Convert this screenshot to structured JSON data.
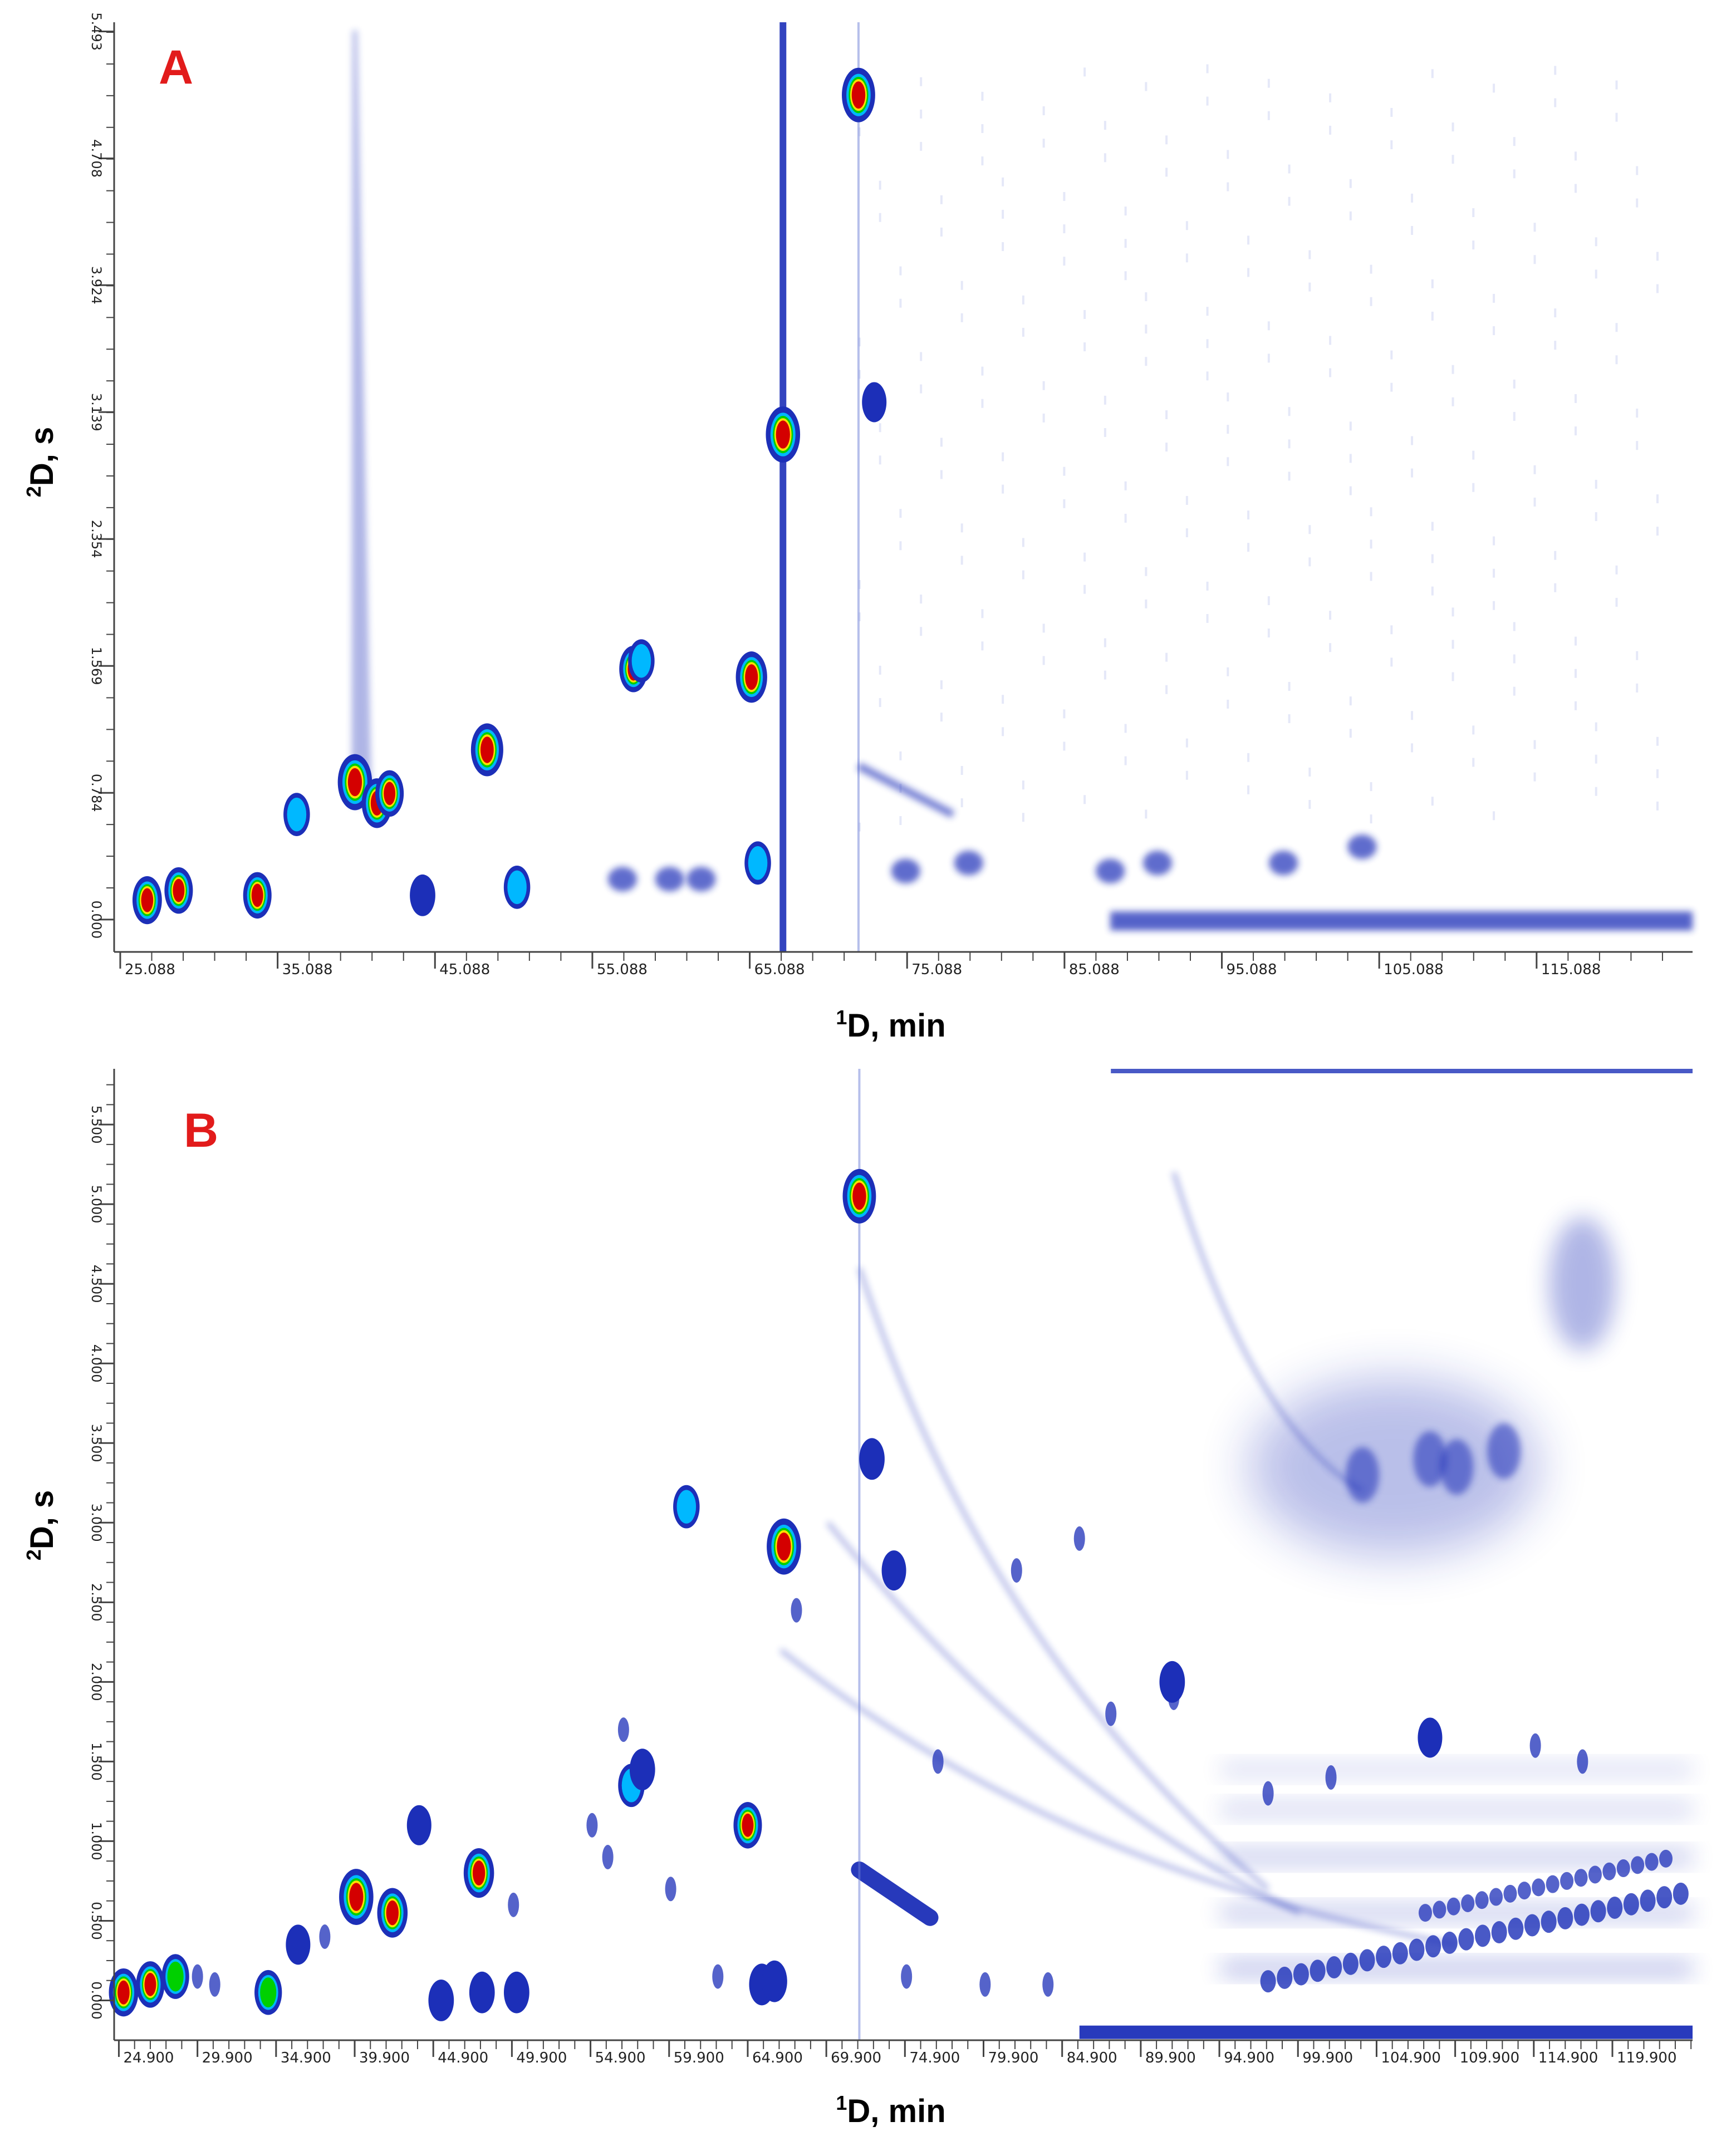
{
  "chart_data": [
    {
      "type": "heatmap",
      "panel_label": "A",
      "xlabel": "1D, min",
      "xlabel_sup": "1",
      "xlabel_rest": "D, min",
      "ylabel": "2D, s",
      "ylabel_sup": "2",
      "ylabel_rest": "D, s",
      "x_ticks": [
        "25.088",
        "35.088",
        "45.088",
        "55.088",
        "65.088",
        "75.088",
        "85.088",
        "95.088",
        "105.088",
        "115.088"
      ],
      "x_tick_values": [
        25.088,
        35.088,
        45.088,
        55.088,
        65.088,
        75.088,
        85.088,
        95.088,
        105.088,
        115.088
      ],
      "xlim": [
        24.7,
        125.0
      ],
      "y_ticks": [
        "0.000",
        "0.784",
        "1.569",
        "2.354",
        "3.139",
        "3.924",
        "4.708",
        "5.493"
      ],
      "y_tick_values": [
        0.0,
        0.784,
        1.569,
        2.354,
        3.139,
        3.924,
        4.708,
        5.493
      ],
      "ylim": [
        -0.2,
        5.55
      ],
      "colormap": [
        "#ffffff",
        "#1428b4",
        "#00c0ff",
        "#00e000",
        "#ffff00",
        "#ff0000",
        "#8c0000"
      ],
      "peaks": [
        {
          "x": 40.0,
          "y": 0.85,
          "intensity": 1.0
        },
        {
          "x": 41.4,
          "y": 0.72,
          "intensity": 0.8
        },
        {
          "x": 42.2,
          "y": 0.78,
          "intensity": 0.7
        },
        {
          "x": 48.4,
          "y": 1.05,
          "intensity": 0.9
        },
        {
          "x": 67.2,
          "y": 3.0,
          "intensity": 1.0
        },
        {
          "x": 72.0,
          "y": 5.1,
          "intensity": 0.95
        },
        {
          "x": 65.2,
          "y": 1.5,
          "intensity": 0.85
        },
        {
          "x": 57.7,
          "y": 1.55,
          "intensity": 0.7
        },
        {
          "x": 58.2,
          "y": 1.6,
          "intensity": 0.6
        },
        {
          "x": 26.8,
          "y": 0.12,
          "intensity": 0.75
        },
        {
          "x": 28.8,
          "y": 0.18,
          "intensity": 0.7
        },
        {
          "x": 33.8,
          "y": 0.15,
          "intensity": 0.7
        },
        {
          "x": 36.3,
          "y": 0.65,
          "intensity": 0.6
        },
        {
          "x": 50.3,
          "y": 0.2,
          "intensity": 0.6
        },
        {
          "x": 44.3,
          "y": 0.15,
          "intensity": 0.55
        },
        {
          "x": 65.6,
          "y": 0.35,
          "intensity": 0.6
        },
        {
          "x": 73.0,
          "y": 3.2,
          "intensity": 0.5
        }
      ]
    },
    {
      "type": "heatmap",
      "panel_label": "B",
      "xlabel": "1D, min",
      "xlabel_sup": "1",
      "xlabel_rest": "D, min",
      "ylabel": "2D, s",
      "ylabel_sup": "2",
      "ylabel_rest": "D, s",
      "x_ticks": [
        "24.900",
        "29.900",
        "34.900",
        "39.900",
        "44.900",
        "49.900",
        "54.900",
        "59.900",
        "64.900",
        "69.900",
        "74.900",
        "79.900",
        "84.900",
        "89.900",
        "94.900",
        "99.900",
        "104.900",
        "109.900",
        "114.900",
        "119.900"
      ],
      "x_tick_values": [
        24.9,
        29.9,
        34.9,
        39.9,
        44.9,
        49.9,
        54.9,
        59.9,
        64.9,
        69.9,
        74.9,
        79.9,
        84.9,
        89.9,
        94.9,
        99.9,
        104.9,
        109.9,
        114.9,
        119.9
      ],
      "xlim": [
        24.6,
        125.0
      ],
      "y_ticks": [
        "0.000",
        "0.500",
        "1.000",
        "1.500",
        "2.000",
        "2.500",
        "3.000",
        "3.500",
        "4.000",
        "4.500",
        "5.000",
        "5.500"
      ],
      "y_tick_values": [
        0.0,
        0.5,
        1.0,
        1.5,
        2.0,
        2.5,
        3.0,
        3.5,
        4.0,
        4.5,
        5.0,
        5.5
      ],
      "ylim": [
        -0.25,
        5.85
      ],
      "colormap": [
        "#ffffff",
        "#1428b4",
        "#00c0ff",
        "#00e000",
        "#ffff00",
        "#ff0000",
        "#8c0000"
      ],
      "peaks": [
        {
          "x": 40.0,
          "y": 0.65,
          "intensity": 1.0
        },
        {
          "x": 42.3,
          "y": 0.55,
          "intensity": 0.8
        },
        {
          "x": 47.8,
          "y": 0.8,
          "intensity": 0.8
        },
        {
          "x": 44.0,
          "y": 1.1,
          "intensity": 0.5
        },
        {
          "x": 67.2,
          "y": 2.85,
          "intensity": 1.0
        },
        {
          "x": 72.0,
          "y": 5.05,
          "intensity": 0.95
        },
        {
          "x": 72.8,
          "y": 3.4,
          "intensity": 0.55
        },
        {
          "x": 74.2,
          "y": 2.7,
          "intensity": 0.5
        },
        {
          "x": 64.9,
          "y": 1.1,
          "intensity": 0.7
        },
        {
          "x": 61.0,
          "y": 3.1,
          "intensity": 0.6
        },
        {
          "x": 57.5,
          "y": 1.35,
          "intensity": 0.6
        },
        {
          "x": 58.2,
          "y": 1.45,
          "intensity": 0.55
        },
        {
          "x": 25.2,
          "y": 0.05,
          "intensity": 0.75
        },
        {
          "x": 26.9,
          "y": 0.1,
          "intensity": 0.7
        },
        {
          "x": 28.5,
          "y": 0.15,
          "intensity": 0.65
        },
        {
          "x": 34.4,
          "y": 0.05,
          "intensity": 0.65
        },
        {
          "x": 36.3,
          "y": 0.35,
          "intensity": 0.5
        },
        {
          "x": 45.4,
          "y": 0.0,
          "intensity": 0.55
        },
        {
          "x": 48.0,
          "y": 0.05,
          "intensity": 0.55
        },
        {
          "x": 50.2,
          "y": 0.05,
          "intensity": 0.55
        },
        {
          "x": 65.8,
          "y": 0.1,
          "intensity": 0.55
        },
        {
          "x": 66.6,
          "y": 0.12,
          "intensity": 0.55
        },
        {
          "x": 91.9,
          "y": 2.0,
          "intensity": 0.55
        },
        {
          "x": 108.3,
          "y": 1.65,
          "intensity": 0.5
        }
      ]
    }
  ]
}
